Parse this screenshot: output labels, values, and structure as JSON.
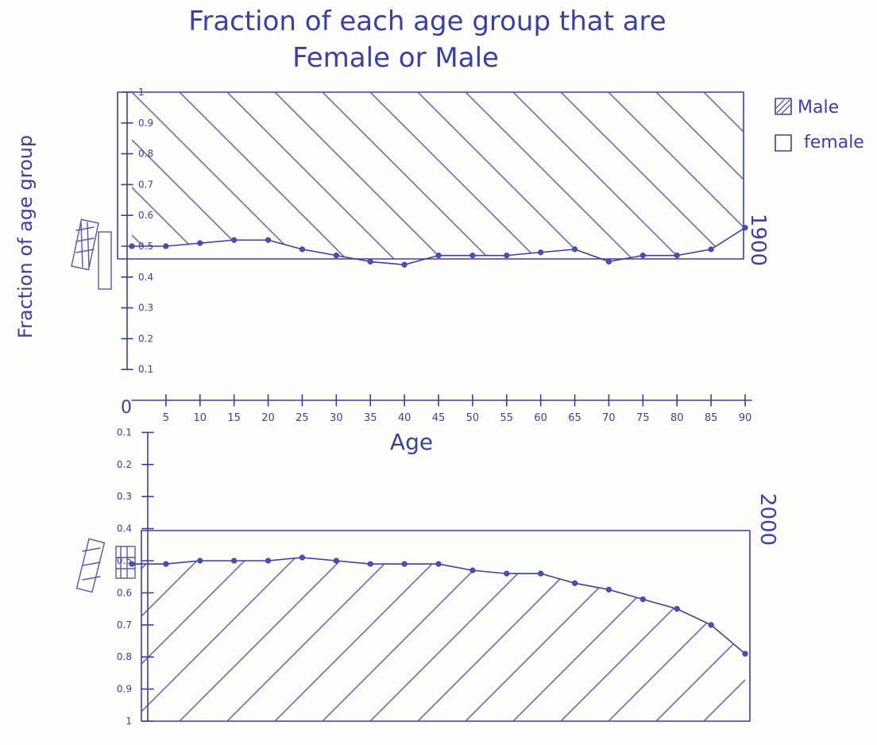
{
  "chart_data": [
    {
      "type": "area",
      "title_line1": "Fraction of each age group that are",
      "title_line2": "Female or Male",
      "ylabel": "Fraction of age group",
      "xlabel": "Age",
      "year": "1900",
      "x": [
        0,
        5,
        10,
        15,
        20,
        25,
        30,
        35,
        40,
        45,
        50,
        55,
        60,
        65,
        70,
        75,
        80,
        85,
        90
      ],
      "male_fraction": [
        0.5,
        0.5,
        0.51,
        0.52,
        0.52,
        0.49,
        0.47,
        0.45,
        0.44,
        0.47,
        0.47,
        0.47,
        0.48,
        0.49,
        0.45,
        0.47,
        0.47,
        0.49,
        0.56
      ],
      "ylim": [
        0,
        1
      ],
      "yticks": [
        "0.1",
        "0.2",
        "0.3",
        "0.4",
        "0.5",
        "0.6",
        "0.7",
        "0.8",
        "0.9",
        "1"
      ]
    },
    {
      "type": "area",
      "year": "2000",
      "x": [
        0,
        5,
        10,
        15,
        20,
        25,
        30,
        35,
        40,
        45,
        50,
        55,
        60,
        65,
        70,
        75,
        80,
        85,
        90
      ],
      "male_fraction": [
        0.51,
        0.51,
        0.5,
        0.5,
        0.5,
        0.49,
        0.5,
        0.51,
        0.51,
        0.51,
        0.53,
        0.54,
        0.54,
        0.57,
        0.59,
        0.62,
        0.65,
        0.7,
        0.79
      ],
      "ylim": [
        0,
        1
      ],
      "yticks": [
        "0.1",
        "0.2",
        "0.3",
        "0.4",
        "0.5",
        "0.6",
        "0.7",
        "0.8",
        "0.9",
        "1"
      ]
    }
  ],
  "x_ticks": [
    "5",
    "10",
    "15",
    "20",
    "25",
    "30",
    "35",
    "40",
    "45",
    "50",
    "55",
    "60",
    "65",
    "70",
    "75",
    "80",
    "85",
    "90"
  ],
  "zero_label": "0",
  "legend": [
    {
      "label": "Male",
      "pattern": "hatched"
    },
    {
      "label": "female",
      "pattern": "empty"
    }
  ],
  "colors": {
    "ink": "#3b3fa6",
    "paper": "#fdfdfb"
  }
}
